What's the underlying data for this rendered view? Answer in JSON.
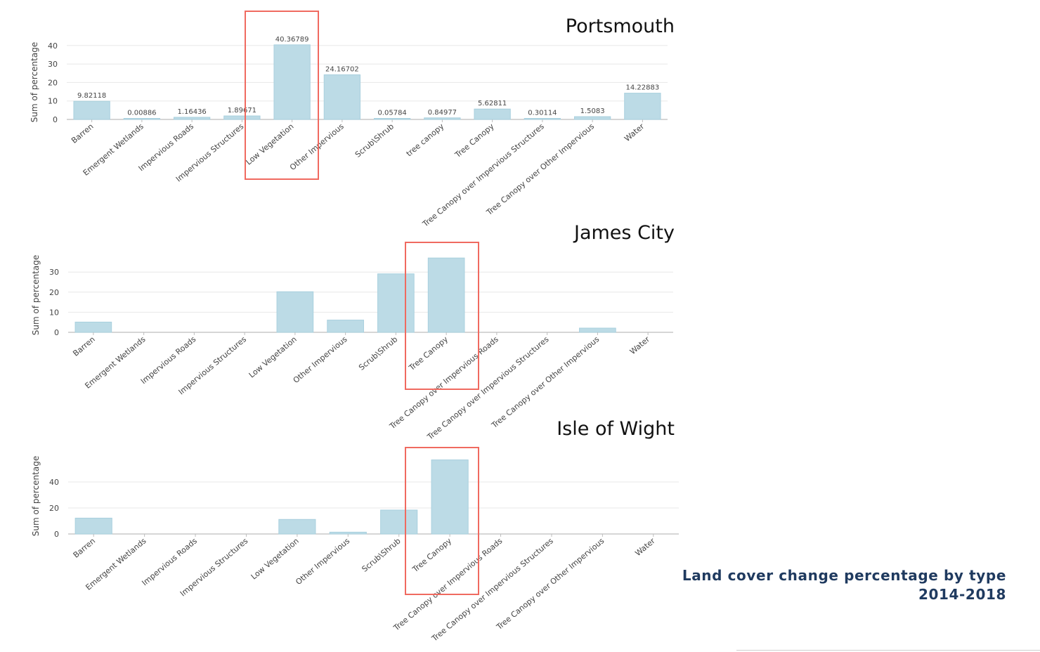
{
  "footer": {
    "title": "Land cover change percentage by type",
    "years": "2014-2018"
  },
  "colors": {
    "bar": "#bcdbe6",
    "bar_stroke": "#a9d0de",
    "highlight": "#f06a60",
    "grid": "#e8e8e8",
    "axis": "#bdbdbd",
    "text": "#555555"
  },
  "chart_data": [
    {
      "type": "bar",
      "title": "Portsmouth",
      "ylabel": "Sum of percentage",
      "xlabel": "",
      "ylim": [
        0,
        40
      ],
      "yticks": [
        0,
        10,
        20,
        30,
        40
      ],
      "categories": [
        "Barren",
        "Emergent Wetlands",
        "Impervious Roads",
        "Impervious Structures",
        "Low Vegetation",
        "Other Impervious",
        "Scrub\\Shrub",
        "tree canopy",
        "Tree Canopy",
        "Tree Canopy over Impervious Structures",
        "Tree Canopy over Other Impervious",
        "Water"
      ],
      "values": [
        9.82118,
        0.00886,
        1.16436,
        1.89671,
        40.36789,
        24.16702,
        0.05784,
        0.84977,
        5.62811,
        0.30114,
        1.5083,
        14.22883
      ],
      "data_labels": [
        "9.82118",
        "0.00886",
        "1.16436",
        "1.89671",
        "40.36789",
        "24.16702",
        "0.05784",
        "0.84977",
        "5.62811",
        "0.30114",
        "1.5083",
        "14.22883"
      ],
      "highlighted_category": "Low Vegetation",
      "grid": true
    },
    {
      "type": "bar",
      "title": "James City",
      "ylabel": "Sum of percentage",
      "xlabel": "",
      "ylim": [
        0,
        35
      ],
      "yticks": [
        0,
        10,
        20,
        30
      ],
      "categories": [
        "Barren",
        "Emergent Wetlands",
        "Impervious Roads",
        "Impervious Structures",
        "Low Vegetation",
        "Other Impervious",
        "Scrub\\Shrub",
        "Tree Canopy",
        "Tree Canopy over Impervious Roads",
        "Tree Canopy over Impervious Structures",
        "Tree Canopy over Other Impervious",
        "Water"
      ],
      "values": [
        5.1,
        0,
        0,
        0,
        20.2,
        6.1,
        29.1,
        37.0,
        0,
        0,
        2.1,
        0
      ],
      "highlighted_category": "Tree Canopy",
      "grid": true
    },
    {
      "type": "bar",
      "title": "Isle of Wight",
      "ylabel": "Sum of percentage",
      "xlabel": "",
      "ylim": [
        0,
        50
      ],
      "yticks": [
        0,
        20,
        40
      ],
      "categories": [
        "Barren",
        "Emergent Wetlands",
        "Impervious Roads",
        "Impervious Structures",
        "Low Vegetation",
        "Other Impervious",
        "Scrub\\Shrub",
        "Tree Canopy",
        "Tree Canopy over Impervious Roads",
        "Tree Canopy over Impervious Structures",
        "Tree Canopy over Other Impervious",
        "Water"
      ],
      "values": [
        12.2,
        0,
        0,
        0,
        11.2,
        1.4,
        18.4,
        57.0,
        0,
        0,
        0,
        0
      ],
      "highlighted_category": "Tree Canopy",
      "grid": true
    }
  ]
}
